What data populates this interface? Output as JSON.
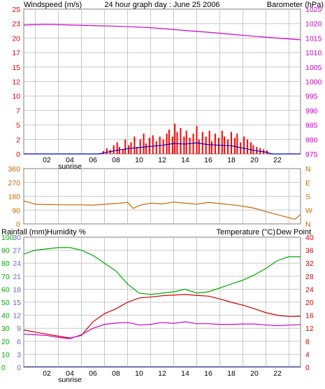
{
  "title": "24 hour graph day : June 25 2006",
  "colors": {
    "wind": "#dd0000",
    "barometer": "#cc00cc",
    "winddir": "#cc6600",
    "rain": "#6666cc",
    "humidity": "#00aa00",
    "temperature": "#cc0000",
    "dewpoint": "#cc00cc",
    "gust": "#ff0000",
    "avgwind": "#0000cc",
    "grid": "#c8c8c8",
    "frame": "#7f7f7f"
  },
  "x_axis": {
    "tick_labels": [
      "02",
      "04",
      "06",
      "08",
      "10",
      "12",
      "14",
      "16",
      "18",
      "20",
      "22"
    ],
    "sunrise_label": "sunrise"
  },
  "chart_data": [
    {
      "type": "bar",
      "title": "24 hour graph day : June 25 2006",
      "panel": "wind-barometer",
      "left_axis_label": "Windspeed (m/s)",
      "right_axis_label": "Barometer (hPa)",
      "left_ticks": [
        "0",
        "2",
        "5",
        "7",
        "10",
        "12",
        "15",
        "17",
        "20",
        "23",
        "25"
      ],
      "right_ticks": [
        "975",
        "980",
        "985",
        "990",
        "995",
        "1000",
        "1005",
        "1010",
        "1015",
        "1020",
        "1025"
      ],
      "ylim_left": [
        0,
        25
      ],
      "ylim_right": [
        975,
        1025
      ],
      "x_hours": [
        0,
        24
      ],
      "gust_bars": [
        [
          6.9,
          0.5
        ],
        [
          7.2,
          1.0
        ],
        [
          7.5,
          0.7
        ],
        [
          7.8,
          1.5
        ],
        [
          8.1,
          2.0
        ],
        [
          8.3,
          1.2
        ],
        [
          8.6,
          0.8
        ],
        [
          8.8,
          2.5
        ],
        [
          9.1,
          1.5
        ],
        [
          9.3,
          2.0
        ],
        [
          9.6,
          3.0
        ],
        [
          9.8,
          1.2
        ],
        [
          10.1,
          2.5
        ],
        [
          10.4,
          3.5
        ],
        [
          10.6,
          1.8
        ],
        [
          10.9,
          2.8
        ],
        [
          11.2,
          3.2
        ],
        [
          11.5,
          2.2
        ],
        [
          11.8,
          3.0
        ],
        [
          12.1,
          2.5
        ],
        [
          12.4,
          3.5
        ],
        [
          12.6,
          4.2
        ],
        [
          12.9,
          3.0
        ],
        [
          13.1,
          5.2
        ],
        [
          13.3,
          3.8
        ],
        [
          13.6,
          4.5
        ],
        [
          13.9,
          3.0
        ],
        [
          14.1,
          4.0
        ],
        [
          14.4,
          2.8
        ],
        [
          14.7,
          3.5
        ],
        [
          15.0,
          4.8
        ],
        [
          15.2,
          2.5
        ],
        [
          15.5,
          3.8
        ],
        [
          15.8,
          3.0
        ],
        [
          16.1,
          4.0
        ],
        [
          16.3,
          2.2
        ],
        [
          16.6,
          3.5
        ],
        [
          16.9,
          2.8
        ],
        [
          17.2,
          4.0
        ],
        [
          17.4,
          3.0
        ],
        [
          17.7,
          2.5
        ],
        [
          18.0,
          3.8
        ],
        [
          18.3,
          2.8
        ],
        [
          18.5,
          3.5
        ],
        [
          18.8,
          2.0
        ],
        [
          19.1,
          3.0
        ],
        [
          19.4,
          2.5
        ],
        [
          19.7,
          2.0
        ],
        [
          19.9,
          1.5
        ],
        [
          20.2,
          1.2
        ],
        [
          20.5,
          1.0
        ],
        [
          20.8,
          0.8
        ],
        [
          21.1,
          0.6
        ]
      ],
      "average_wind": [
        [
          0,
          0
        ],
        [
          6.5,
          0
        ],
        [
          7.0,
          0.2
        ],
        [
          8.0,
          0.6
        ],
        [
          9.0,
          0.9
        ],
        [
          10.0,
          1.1
        ],
        [
          11.0,
          1.3
        ],
        [
          12.0,
          1.5
        ],
        [
          13.0,
          1.8
        ],
        [
          14.0,
          1.7
        ],
        [
          15.0,
          1.9
        ],
        [
          16.0,
          1.6
        ],
        [
          17.0,
          1.5
        ],
        [
          18.0,
          1.4
        ],
        [
          19.0,
          1.0
        ],
        [
          20.0,
          0.6
        ],
        [
          21.0,
          0.3
        ],
        [
          21.5,
          0
        ],
        [
          24,
          0
        ]
      ],
      "barometer": [
        [
          0,
          1019.5
        ],
        [
          2,
          1019.7
        ],
        [
          4,
          1019.5
        ],
        [
          6,
          1019.3
        ],
        [
          8,
          1019.1
        ],
        [
          10,
          1018.8
        ],
        [
          12,
          1018.3
        ],
        [
          14,
          1017.6
        ],
        [
          16,
          1017.0
        ],
        [
          18,
          1016.3
        ],
        [
          20,
          1015.6
        ],
        [
          22,
          1015.0
        ],
        [
          24,
          1014.4
        ]
      ]
    },
    {
      "type": "line",
      "panel": "wind-direction",
      "left_ticks": [
        "0",
        "90",
        "180",
        "270",
        "360"
      ],
      "right_ticks": [
        "N",
        "W",
        "S",
        "E",
        "N"
      ],
      "ylim": [
        0,
        360
      ],
      "x_hours": [
        0,
        24
      ],
      "direction": [
        [
          0,
          148
        ],
        [
          0.5,
          140
        ],
        [
          1,
          128
        ],
        [
          2,
          126
        ],
        [
          3,
          125
        ],
        [
          4,
          124
        ],
        [
          5,
          124
        ],
        [
          6,
          122
        ],
        [
          7,
          128
        ],
        [
          8,
          132
        ],
        [
          9,
          140
        ],
        [
          9.5,
          100
        ],
        [
          10,
          120
        ],
        [
          11,
          135
        ],
        [
          12,
          130
        ],
        [
          13,
          142
        ],
        [
          14,
          135
        ],
        [
          15,
          128
        ],
        [
          16,
          140
        ],
        [
          17,
          132
        ],
        [
          18,
          125
        ],
        [
          19,
          115
        ],
        [
          20,
          102
        ],
        [
          21,
          80
        ],
        [
          22,
          60
        ],
        [
          23,
          40
        ],
        [
          23.5,
          30
        ],
        [
          24,
          60
        ]
      ]
    },
    {
      "type": "line",
      "panel": "humidity-temperature",
      "left_axis_label": "Rainfall (mm)",
      "left_axis_label2": "Humidity %",
      "right_axis_label": "Temperature (°C)",
      "right_axis_label2": "Dew Point",
      "rain_ticks": [
        "0",
        "3",
        "6",
        "9",
        "12",
        "15",
        "18",
        "21",
        "24",
        "27",
        "30"
      ],
      "humidity_ticks": [
        "0",
        "10",
        "20",
        "30",
        "40",
        "50",
        "60",
        "70",
        "80",
        "90",
        "100"
      ],
      "temperature_ticks": [
        "0",
        "4",
        "8",
        "12",
        "16",
        "20",
        "24",
        "28",
        "32",
        "36",
        "40"
      ],
      "ylim_humidity": [
        0,
        100
      ],
      "ylim_temperature": [
        0,
        40
      ],
      "x_hours": [
        0,
        24
      ],
      "series": [
        {
          "name": "Humidity %",
          "points": [
            [
              0,
              87
            ],
            [
              1,
              90
            ],
            [
              2,
              91
            ],
            [
              3,
              92
            ],
            [
              4,
              92
            ],
            [
              5,
              90
            ],
            [
              6,
              86
            ],
            [
              7,
              80
            ],
            [
              8,
              74
            ],
            [
              9,
              64
            ],
            [
              10,
              57
            ],
            [
              11,
              56
            ],
            [
              12,
              57
            ],
            [
              13,
              58
            ],
            [
              14,
              60
            ],
            [
              15,
              57
            ],
            [
              16,
              58
            ],
            [
              17,
              61
            ],
            [
              18,
              64
            ],
            [
              19,
              67
            ],
            [
              20,
              71
            ],
            [
              21,
              76
            ],
            [
              22,
              82
            ],
            [
              23,
              85
            ],
            [
              24,
              85
            ]
          ]
        },
        {
          "name": "Temperature (°C)",
          "points": [
            [
              0,
              11.5
            ],
            [
              1,
              10.8
            ],
            [
              2,
              10.2
            ],
            [
              3,
              9.6
            ],
            [
              4,
              9.0
            ],
            [
              5,
              9.8
            ],
            [
              6,
              14.0
            ],
            [
              7,
              16.5
            ],
            [
              8,
              18.0
            ],
            [
              9,
              20.0
            ],
            [
              10,
              21.3
            ],
            [
              11,
              21.6
            ],
            [
              12,
              22.0
            ],
            [
              13,
              22.2
            ],
            [
              14,
              22.4
            ],
            [
              15,
              22.1
            ],
            [
              16,
              21.9
            ],
            [
              17,
              21.0
            ],
            [
              18,
              20.0
            ],
            [
              19,
              19.1
            ],
            [
              20,
              18.0
            ],
            [
              21,
              16.8
            ],
            [
              22,
              16.0
            ],
            [
              23,
              15.6
            ],
            [
              24,
              15.7
            ]
          ]
        },
        {
          "name": "Dew Point",
          "points": [
            [
              0,
              10.2
            ],
            [
              1,
              10.0
            ],
            [
              2,
              9.8
            ],
            [
              3,
              9.2
            ],
            [
              4,
              8.8
            ],
            [
              5,
              10.0
            ],
            [
              6,
              12.0
            ],
            [
              7,
              13.2
            ],
            [
              8,
              13.6
            ],
            [
              9,
              13.8
            ],
            [
              10,
              13.0
            ],
            [
              11,
              13.2
            ],
            [
              12,
              13.8
            ],
            [
              13,
              13.5
            ],
            [
              14,
              14.0
            ],
            [
              15,
              13.4
            ],
            [
              16,
              13.4
            ],
            [
              17,
              13.2
            ],
            [
              18,
              13.2
            ],
            [
              19,
              13.3
            ],
            [
              20,
              13.3
            ],
            [
              21,
              13.0
            ],
            [
              22,
              12.8
            ],
            [
              23,
              13.0
            ],
            [
              24,
              13.1
            ]
          ]
        },
        {
          "name": "Rainfall (mm)",
          "points": [
            [
              0,
              0
            ],
            [
              24,
              0
            ]
          ]
        }
      ]
    }
  ]
}
